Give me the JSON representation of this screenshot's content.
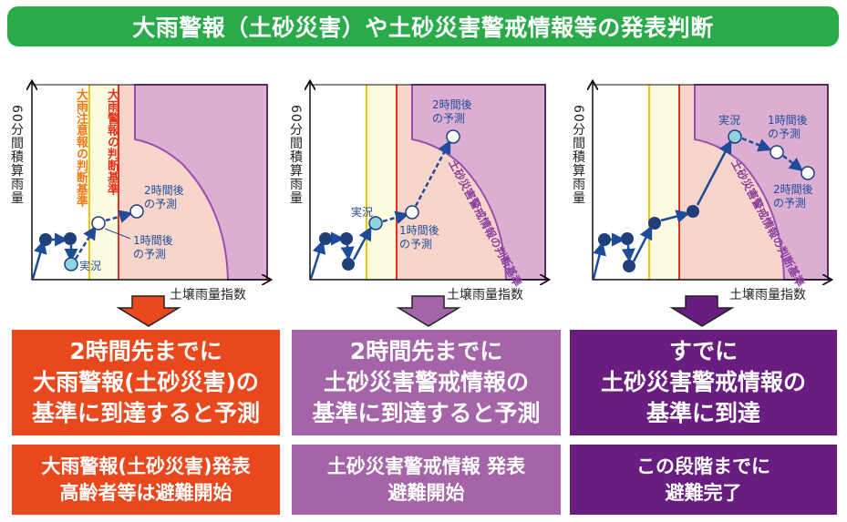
{
  "title": "大雨警報（土砂災害）や土砂災害警戒情報等の発表判断",
  "axes": {
    "y_label": "60分間積算雨量",
    "x_label": "土壌雨量指数"
  },
  "labels": {
    "advisory_criterion": "大雨注意報の判断基準",
    "warning_criterion": "大雨警報の判断基準",
    "sediment_criterion": "土砂災害警戒情報の判断基準",
    "current": "実況",
    "forecast_1h": "1時間後の予測",
    "forecast_2h": "2時間後の予測",
    "forecast_1h_l1": "1時間後",
    "forecast_2h_l1": "2時間後",
    "forecast_l2": "の予測"
  },
  "colors": {
    "title_bg": "#2aab4a",
    "case1": "#e8481c",
    "case2": "#a564a8",
    "case3": "#6a1d80",
    "advisory_line": "#f5c400",
    "warning_line": "#e8301c",
    "sediment_area": "#dcaed2",
    "warning_area": "#f8d5ca",
    "advisory_area": "#fdfbe0",
    "point_dark": "#1e3f7a",
    "point_current": "#8fd3e0"
  },
  "cases": [
    {
      "result": [
        "2時間先までに",
        "大雨警報(土砂災害)の",
        "基準に到達すると予測"
      ],
      "action": [
        "大雨警報(土砂災害)発表",
        "高齢者等は避難開始"
      ]
    },
    {
      "result": [
        "2時間先までに",
        "土砂災害警戒情報の",
        "基準に到達すると予測"
      ],
      "action": [
        "土砂災害警戒情報 発表",
        "避難開始"
      ]
    },
    {
      "result": [
        "すでに",
        "土砂災害警戒情報の",
        "基準に到達"
      ],
      "action": [
        "この段階までに",
        "避難完了"
      ]
    }
  ]
}
